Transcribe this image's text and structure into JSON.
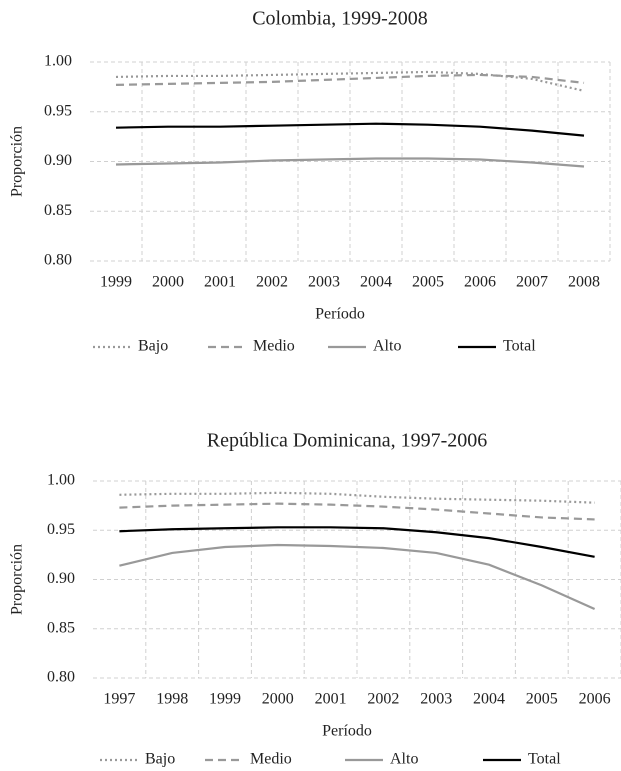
{
  "chart_data": [
    {
      "type": "line",
      "title": "Colombia, 1999-2008",
      "xlabel": "Período",
      "ylabel": "Proporción",
      "categories": [
        "1999",
        "2000",
        "2001",
        "2002",
        "2003",
        "2004",
        "2005",
        "2006",
        "2007",
        "2008"
      ],
      "ylim": [
        0.8,
        1.0
      ],
      "yticks": [
        {
          "value": 0.8,
          "label": "0.80"
        },
        {
          "value": 0.85,
          "label": "0.85"
        },
        {
          "value": 0.9,
          "label": "0.90"
        },
        {
          "value": 0.95,
          "label": "0.95"
        },
        {
          "value": 1.0,
          "label": "1.00"
        }
      ],
      "grid": true,
      "series": [
        {
          "name": "Bajo",
          "color": "#999999",
          "dash": "dotted",
          "values": [
            0.985,
            0.986,
            0.986,
            0.987,
            0.988,
            0.989,
            0.99,
            0.988,
            0.983,
            0.971
          ]
        },
        {
          "name": "Medio",
          "color": "#999999",
          "dash": "dashed",
          "values": [
            0.977,
            0.978,
            0.979,
            0.98,
            0.982,
            0.984,
            0.986,
            0.987,
            0.985,
            0.979
          ]
        },
        {
          "name": "Alto",
          "color": "#999999",
          "dash": "solid",
          "values": [
            0.897,
            0.898,
            0.899,
            0.901,
            0.902,
            0.903,
            0.903,
            0.902,
            0.899,
            0.895
          ]
        },
        {
          "name": "Total",
          "color": "#000000",
          "dash": "solid",
          "values": [
            0.934,
            0.935,
            0.935,
            0.936,
            0.937,
            0.938,
            0.937,
            0.935,
            0.931,
            0.926
          ]
        }
      ]
    },
    {
      "type": "line",
      "title": "República Dominicana, 1997-2006",
      "xlabel": "Período",
      "ylabel": "Proporción",
      "categories": [
        "1997",
        "1998",
        "1999",
        "2000",
        "2001",
        "2002",
        "2003",
        "2004",
        "2005",
        "2006"
      ],
      "ylim": [
        0.8,
        1.0
      ],
      "yticks": [
        {
          "value": 0.8,
          "label": "0.80"
        },
        {
          "value": 0.85,
          "label": "0.85"
        },
        {
          "value": 0.9,
          "label": "0.90"
        },
        {
          "value": 0.95,
          "label": "0.95"
        },
        {
          "value": 1.0,
          "label": "1.00"
        }
      ],
      "grid": true,
      "series": [
        {
          "name": "Bajo",
          "color": "#999999",
          "dash": "dotted",
          "values": [
            0.986,
            0.987,
            0.987,
            0.988,
            0.987,
            0.984,
            0.982,
            0.981,
            0.98,
            0.978
          ]
        },
        {
          "name": "Medio",
          "color": "#999999",
          "dash": "dashed",
          "values": [
            0.973,
            0.975,
            0.976,
            0.977,
            0.976,
            0.974,
            0.971,
            0.967,
            0.963,
            0.961
          ]
        },
        {
          "name": "Alto",
          "color": "#999999",
          "dash": "solid",
          "values": [
            0.914,
            0.927,
            0.933,
            0.935,
            0.934,
            0.932,
            0.927,
            0.915,
            0.894,
            0.87
          ]
        },
        {
          "name": "Total",
          "color": "#000000",
          "dash": "solid",
          "values": [
            0.949,
            0.951,
            0.952,
            0.953,
            0.953,
            0.952,
            0.948,
            0.942,
            0.933,
            0.923
          ]
        }
      ]
    }
  ]
}
